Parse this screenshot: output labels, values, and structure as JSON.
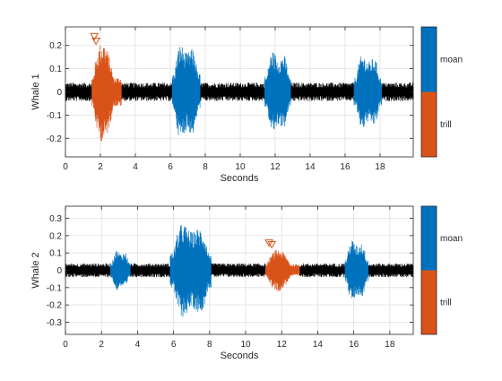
{
  "colors": {
    "noise": "#000000",
    "moan": "#0072BD",
    "trill": "#D95319",
    "grid": "#dfdfdf",
    "axis": "#262626"
  },
  "chart_data": [
    {
      "type": "line",
      "ylabel": "Whale 1",
      "xlabel": "Seconds",
      "xlim": [
        0,
        19.9
      ],
      "ylim": [
        -0.28,
        0.28
      ],
      "xticks": [
        0,
        2,
        4,
        6,
        8,
        10,
        12,
        14,
        16,
        18
      ],
      "yticks": [
        -0.2,
        -0.1,
        0,
        0.1,
        0.2
      ],
      "ytick_labels": [
        "-0.2",
        "-0.1",
        "0",
        "0.1",
        "0.2"
      ],
      "noise_amplitude": 0.04,
      "segments": [
        {
          "label": "trill",
          "start": 1.5,
          "end": 3.2,
          "peak": 0.25
        },
        {
          "label": "moan",
          "start": 6.1,
          "end": 7.7,
          "peak": 0.28
        },
        {
          "label": "moan",
          "start": 11.4,
          "end": 12.9,
          "peak": 0.24
        },
        {
          "label": "moan",
          "start": 16.5,
          "end": 18.1,
          "peak": 0.22
        }
      ],
      "markers": [
        {
          "label": "trill",
          "x": 1.65,
          "y": 0.24
        },
        {
          "label": "trill",
          "x": 1.75,
          "y": 0.22
        }
      ],
      "legend": {
        "position": "right",
        "entries": [
          "moan",
          "trill"
        ]
      }
    },
    {
      "type": "line",
      "ylabel": "Whale 2",
      "xlabel": "Seconds",
      "xlim": [
        0,
        19.3
      ],
      "ylim": [
        -0.37,
        0.37
      ],
      "xticks": [
        0,
        2,
        4,
        6,
        8,
        10,
        12,
        14,
        16,
        18
      ],
      "yticks": [
        -0.3,
        -0.2,
        -0.1,
        0,
        0.1,
        0.2,
        0.3
      ],
      "ytick_labels": [
        "-0.3",
        "-0.2",
        "-0.1",
        "0",
        "0.1",
        "0.2",
        "0.3"
      ],
      "noise_amplitude": 0.04,
      "segments": [
        {
          "label": "moan",
          "start": 2.5,
          "end": 3.6,
          "peak": 0.16
        },
        {
          "label": "moan",
          "start": 5.8,
          "end": 8.1,
          "peak": 0.37
        },
        {
          "label": "trill",
          "start": 11.1,
          "end": 13.0,
          "peak": 0.14
        },
        {
          "label": "moan",
          "start": 15.5,
          "end": 16.8,
          "peak": 0.24
        }
      ],
      "markers": [
        {
          "label": "trill",
          "x": 11.3,
          "y": 0.16
        },
        {
          "label": "trill",
          "x": 11.45,
          "y": 0.15
        }
      ],
      "legend": {
        "position": "right",
        "entries": [
          "moan",
          "trill"
        ]
      }
    }
  ]
}
